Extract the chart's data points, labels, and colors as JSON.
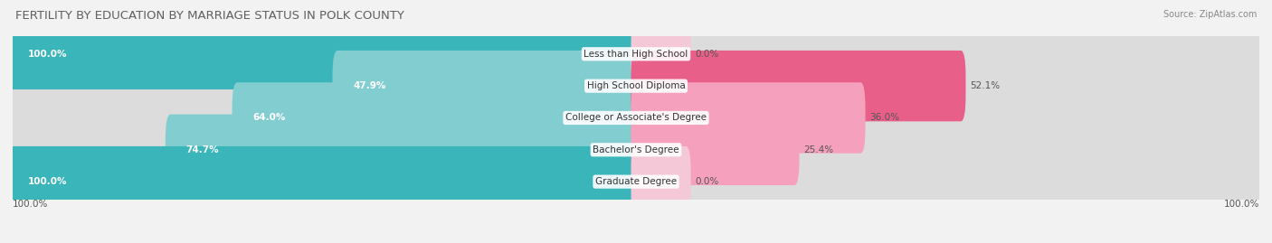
{
  "title": "FERTILITY BY EDUCATION BY MARRIAGE STATUS IN POLK COUNTY",
  "source": "Source: ZipAtlas.com",
  "categories": [
    "Less than High School",
    "High School Diploma",
    "College or Associate's Degree",
    "Bachelor's Degree",
    "Graduate Degree"
  ],
  "married_pct": [
    100.0,
    47.9,
    64.0,
    74.7,
    100.0
  ],
  "unmarried_pct": [
    0.0,
    52.1,
    36.0,
    25.4,
    0.0
  ],
  "married_color_full": "#3ab5ba",
  "married_color_partial": "#82cdd0",
  "unmarried_color_full": "#e8608a",
  "unmarried_color_partial": "#f5a0bc",
  "unmarried_color_zero": "#f5c8d8",
  "bg_color": "#f2f2f2",
  "bar_bg_color": "#dcdcdc",
  "bar_height": 0.62,
  "title_fontsize": 9.5,
  "label_fontsize": 7.5,
  "pct_fontsize": 7.5,
  "legend_fontsize": 8,
  "source_fontsize": 7
}
